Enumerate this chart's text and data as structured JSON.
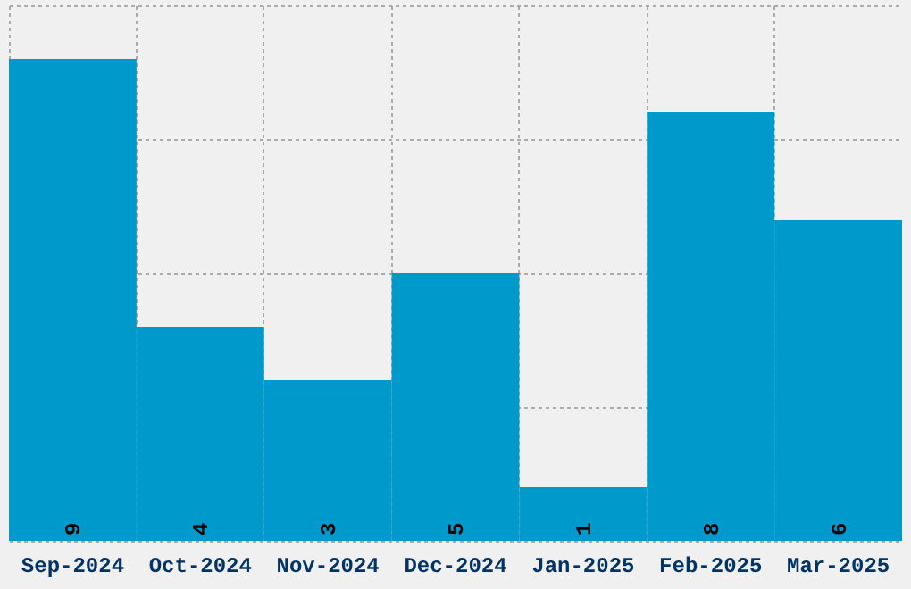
{
  "chart_data": {
    "type": "bar",
    "categories": [
      "Sep-2024",
      "Oct-2024",
      "Nov-2024",
      "Dec-2024",
      "Jan-2025",
      "Feb-2025",
      "Mar-2025"
    ],
    "values": [
      9,
      4,
      3,
      5,
      1,
      8,
      6
    ],
    "color": "#0099cc",
    "ylim": [
      0,
      10
    ],
    "yticks": [
      0,
      2.5,
      5,
      7.5,
      10
    ],
    "grid": true,
    "tick_labels": "x",
    "data_labels": true
  }
}
